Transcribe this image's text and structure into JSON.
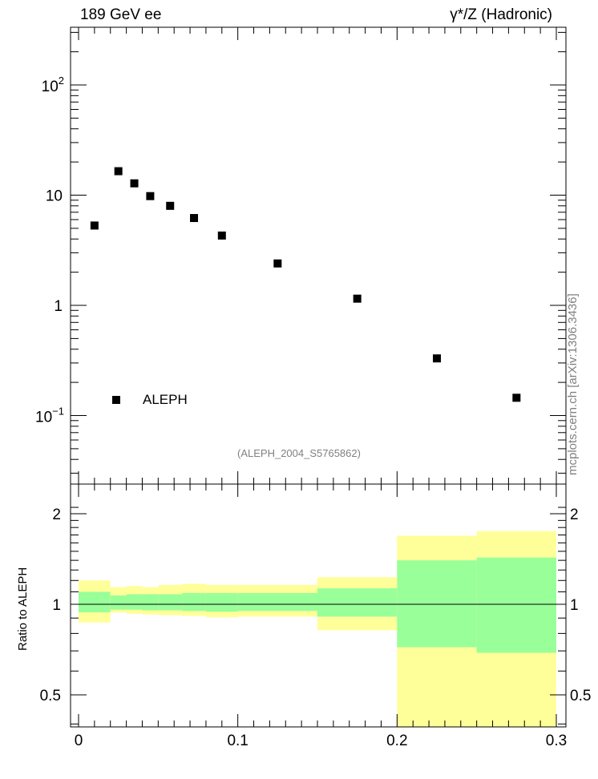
{
  "header": {
    "left": "189 GeV ee",
    "right": "γ*/Z (Hadronic)"
  },
  "side_label": "mcplots.cern.ch [arXiv:1306.3436]",
  "reference": "(ALEPH_2004_S5765862)",
  "chart_data": [
    {
      "type": "scatter",
      "title": "",
      "xlabel": "",
      "ylabel": "",
      "xlim": [
        0,
        0.3
      ],
      "ylim": [
        0.03,
        300
      ],
      "yscale": "log",
      "y_ticks": [
        {
          "value": 100,
          "base": "10",
          "exp": "2"
        },
        {
          "value": 10,
          "base": "10",
          "exp": ""
        },
        {
          "value": 1,
          "base": "1",
          "exp": ""
        },
        {
          "value": 0.1,
          "base": "10",
          "exp": "−1"
        }
      ],
      "legend": {
        "label": "ALEPH",
        "position": "bottom-left"
      },
      "series": [
        {
          "name": "ALEPH",
          "x": [
            0.01,
            0.025,
            0.035,
            0.045,
            0.0575,
            0.0725,
            0.09,
            0.125,
            0.175,
            0.225,
            0.275
          ],
          "y": [
            5.3,
            16.5,
            12.8,
            9.8,
            8.0,
            6.2,
            4.3,
            2.4,
            1.15,
            0.33,
            0.145
          ]
        }
      ]
    },
    {
      "type": "area",
      "ylabel": "Ratio to ALEPH",
      "xlim": [
        0,
        0.3
      ],
      "ylim": [
        0.35,
        2.3
      ],
      "y_ticks": [
        "0.5",
        "1",
        "2"
      ],
      "x_ticks": [
        "0",
        "0.1",
        "0.2",
        "0.3"
      ],
      "reference_line": 1,
      "bands": {
        "edges": [
          0.0,
          0.02,
          0.03,
          0.04,
          0.05,
          0.065,
          0.08,
          0.1,
          0.15,
          0.2,
          0.25,
          0.3
        ],
        "yellow_low": [
          0.87,
          0.94,
          0.93,
          0.925,
          0.92,
          0.915,
          0.905,
          0.91,
          0.82,
          0.35,
          0.35
        ],
        "yellow_high": [
          1.2,
          1.14,
          1.15,
          1.14,
          1.16,
          1.17,
          1.16,
          1.16,
          1.23,
          1.69,
          1.75
        ],
        "green_low": [
          0.94,
          0.96,
          0.96,
          0.955,
          0.955,
          0.95,
          0.945,
          0.95,
          0.91,
          0.72,
          0.69
        ],
        "green_high": [
          1.1,
          1.07,
          1.08,
          1.08,
          1.08,
          1.09,
          1.09,
          1.09,
          1.13,
          1.4,
          1.43
        ]
      },
      "colors": {
        "yellow": "#ffff99",
        "green": "#99ff99"
      }
    }
  ]
}
